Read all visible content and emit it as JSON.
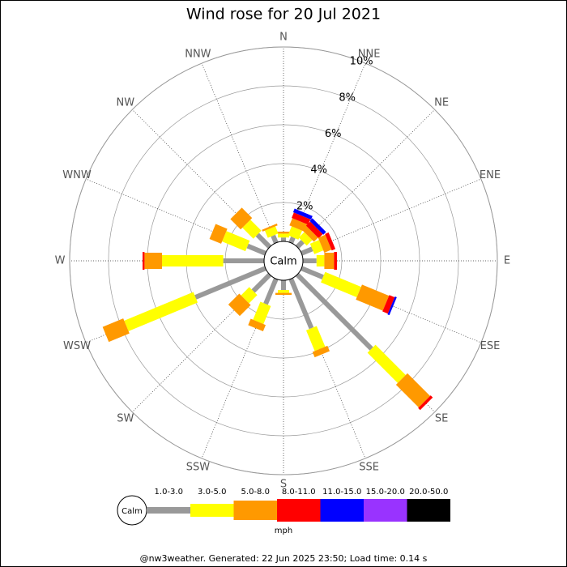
{
  "chart_data": {
    "type": "wind-rose",
    "title": "Wind rose for 20 Jul 2021",
    "categories": [
      "N",
      "NNE",
      "NE",
      "ENE",
      "E",
      "ESE",
      "SE",
      "SSE",
      "S",
      "SSW",
      "SW",
      "WSW",
      "W",
      "WNW",
      "NW",
      "NNW"
    ],
    "center_label": "Calm",
    "ylim": [
      0,
      10
    ],
    "yticks": [
      {
        "value": 2,
        "label": "2%"
      },
      {
        "value": 4,
        "label": "4%"
      },
      {
        "value": 6,
        "label": "6%"
      },
      {
        "value": 8,
        "label": "8%"
      },
      {
        "value": 10,
        "label": "10%"
      }
    ],
    "series": [
      {
        "name": "1.0-3.0",
        "color": "#999999",
        "values": [
          0.2,
          0.3,
          0.4,
          0.6,
          0.7,
          1.2,
          5.4,
          2.75,
          0.5,
          1.4,
          1.2,
          3.9,
          2.1,
          1.0,
          0.9,
          0.4
        ]
      },
      {
        "name": "3.0-5.0",
        "color": "#ffff00",
        "values": [
          0.2,
          0.5,
          0.4,
          0.5,
          0.4,
          2.0,
          2.2,
          1.15,
          0.15,
          1.0,
          0.6,
          3.85,
          3.15,
          1.3,
          0.8,
          0.4
        ]
      },
      {
        "name": "5.0-8.0",
        "color": "#ff9900",
        "values": [
          0.1,
          0.4,
          0.3,
          0.4,
          0.5,
          1.5,
          1.65,
          0.3,
          0.1,
          0.35,
          0.8,
          1.15,
          0.9,
          0.65,
          0.75,
          0.1
        ]
      },
      {
        "name": "8.0-11.0",
        "color": "#ff0000",
        "values": [
          0,
          0.3,
          0.3,
          0.2,
          0.15,
          0.3,
          0.15,
          0,
          0,
          0,
          0,
          0,
          0.1,
          0,
          0,
          0
        ]
      },
      {
        "name": "11.0-15.0",
        "color": "#0000ff",
        "values": [
          0,
          0.2,
          0.2,
          0,
          0,
          0.1,
          0,
          0,
          0,
          0,
          0,
          0,
          0,
          0,
          0,
          0
        ]
      },
      {
        "name": "15.0-20.0",
        "color": "#9933ff",
        "values": [
          0,
          0,
          0,
          0,
          0,
          0,
          0,
          0,
          0,
          0,
          0,
          0,
          0,
          0,
          0,
          0
        ]
      },
      {
        "name": "20.0-50.0",
        "color": "#000000",
        "values": [
          0,
          0,
          0,
          0,
          0,
          0,
          0,
          0,
          0,
          0,
          0,
          0,
          0,
          0,
          0,
          0
        ]
      }
    ],
    "legend_unit": "mph",
    "footer": "@nw3weather. Generated: 22 Jun 2025 23:50; Load time: 0.14 s"
  }
}
